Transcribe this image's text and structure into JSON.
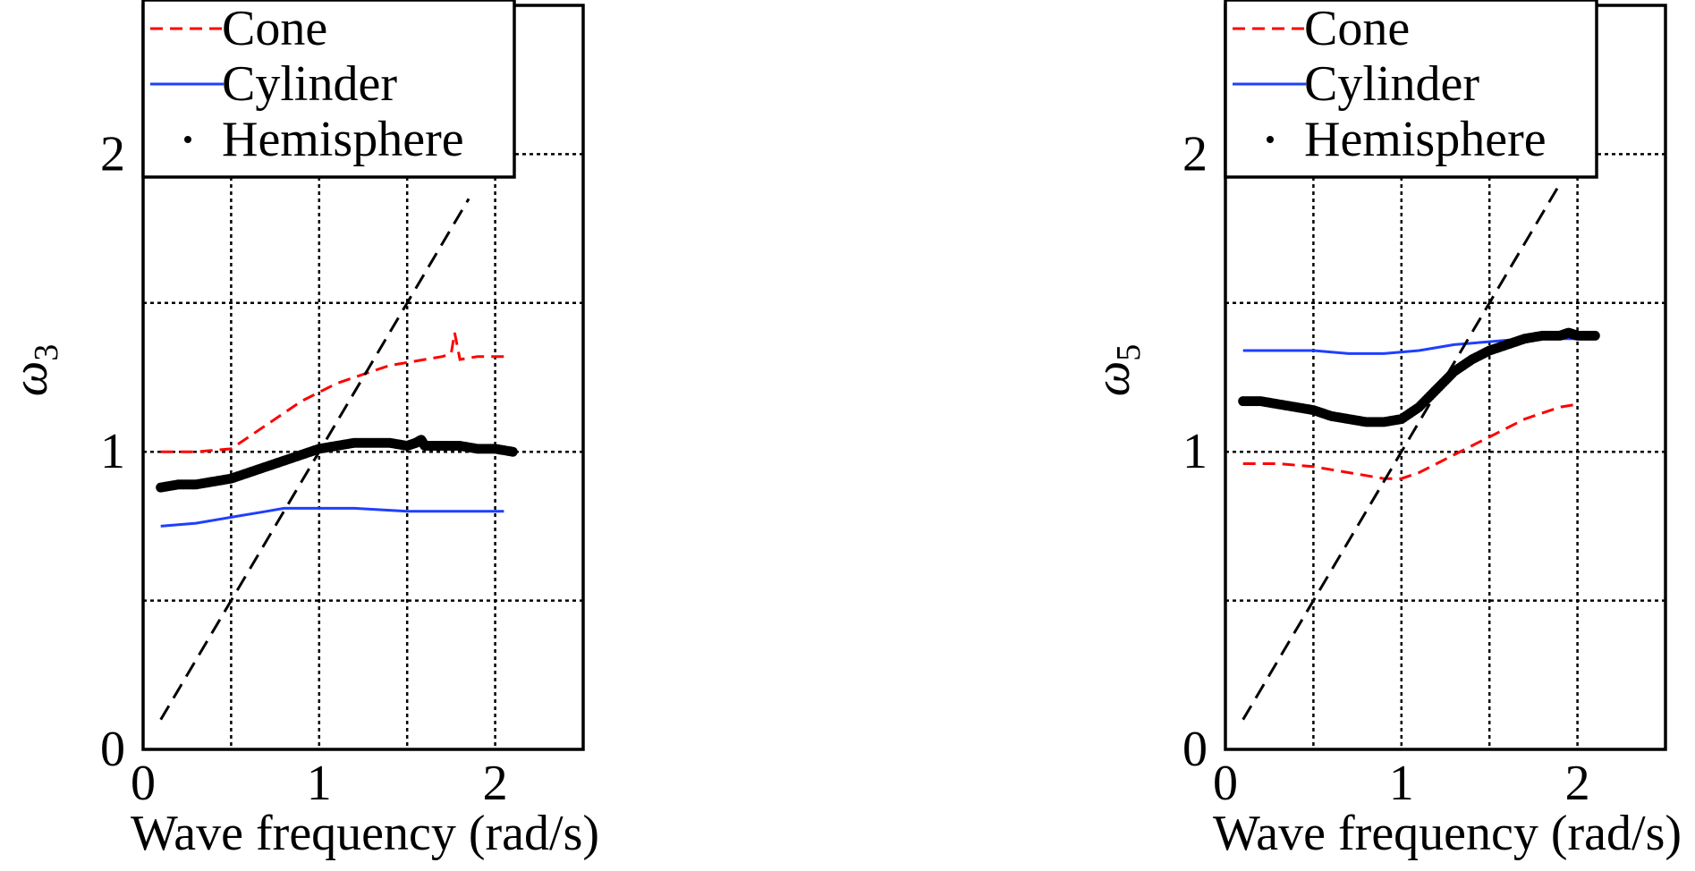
{
  "chart_data": [
    {
      "type": "line",
      "xlabel": "Wave frequency (rad/s)",
      "ylabel_symbol": "ω",
      "ylabel_sub": "3",
      "xlim": [
        0,
        2.5
      ],
      "ylim": [
        0,
        2.5
      ],
      "xticks": [
        "0",
        "1",
        "2"
      ],
      "yticks": [
        "0",
        "1",
        "2"
      ],
      "grid": true,
      "legend": {
        "position": "top-left",
        "entries": [
          {
            "label": "Cone",
            "color": "#ff0000",
            "style": "dashed"
          },
          {
            "label": "Cylinder",
            "color": "#1f3fff",
            "style": "solid"
          },
          {
            "label": "Hemisphere",
            "color": "#000000",
            "style": "dots"
          }
        ]
      },
      "series": [
        {
          "name": "Cone",
          "color": "#ff0000",
          "style": "dashed",
          "x": [
            0.1,
            0.3,
            0.5,
            0.6,
            0.7,
            0.8,
            0.9,
            1.0,
            1.1,
            1.2,
            1.3,
            1.4,
            1.5,
            1.6,
            1.7,
            1.75,
            1.77,
            1.8,
            1.9,
            2.05
          ],
          "y": [
            1.0,
            1.0,
            1.01,
            1.05,
            1.09,
            1.13,
            1.17,
            1.2,
            1.23,
            1.25,
            1.27,
            1.29,
            1.3,
            1.31,
            1.32,
            1.33,
            1.4,
            1.31,
            1.32,
            1.32
          ]
        },
        {
          "name": "Cylinder",
          "color": "#1f3fff",
          "style": "solid",
          "x": [
            0.1,
            0.3,
            0.5,
            0.7,
            0.8,
            0.9,
            1.0,
            1.2,
            1.5,
            1.8,
            2.05
          ],
          "y": [
            0.75,
            0.76,
            0.78,
            0.8,
            0.81,
            0.81,
            0.81,
            0.81,
            0.8,
            0.8,
            0.8
          ]
        },
        {
          "name": "Hemisphere",
          "color": "#000000",
          "style": "dots",
          "x": [
            0.1,
            0.2,
            0.3,
            0.4,
            0.5,
            0.6,
            0.7,
            0.8,
            0.9,
            1.0,
            1.1,
            1.2,
            1.3,
            1.4,
            1.5,
            1.55,
            1.58,
            1.6,
            1.7,
            1.8,
            1.9,
            2.0,
            2.1
          ],
          "y": [
            0.88,
            0.89,
            0.89,
            0.9,
            0.91,
            0.93,
            0.95,
            0.97,
            0.99,
            1.01,
            1.02,
            1.03,
            1.03,
            1.03,
            1.02,
            1.03,
            1.04,
            1.02,
            1.02,
            1.02,
            1.01,
            1.01,
            1.0
          ]
        },
        {
          "name": "",
          "color": "#000000",
          "style": "longdash",
          "x": [
            0.1,
            1.85
          ],
          "y": [
            0.1,
            1.85
          ]
        }
      ]
    },
    {
      "type": "line",
      "xlabel": "Wave frequency (rad/s)",
      "ylabel_symbol": "ω",
      "ylabel_sub": "5",
      "xlim": [
        0,
        2.5
      ],
      "ylim": [
        0,
        2.5
      ],
      "xticks": [
        "0",
        "1",
        "2"
      ],
      "yticks": [
        "0",
        "1",
        "2"
      ],
      "grid": true,
      "legend": {
        "position": "top-left",
        "entries": [
          {
            "label": "Cone",
            "color": "#ff0000",
            "style": "dashed"
          },
          {
            "label": "Cylinder",
            "color": "#1f3fff",
            "style": "solid"
          },
          {
            "label": "Hemisphere",
            "color": "#000000",
            "style": "dots"
          }
        ]
      },
      "series": [
        {
          "name": "Cone",
          "color": "#ff0000",
          "style": "dashed",
          "x": [
            0.1,
            0.3,
            0.5,
            0.7,
            0.8,
            0.9,
            1.0,
            1.1,
            1.2,
            1.3,
            1.4,
            1.5,
            1.6,
            1.7,
            1.8,
            1.9,
            2.0
          ],
          "y": [
            0.96,
            0.96,
            0.95,
            0.93,
            0.92,
            0.91,
            0.91,
            0.93,
            0.96,
            0.99,
            1.02,
            1.05,
            1.08,
            1.11,
            1.13,
            1.15,
            1.16
          ]
        },
        {
          "name": "Cylinder",
          "color": "#1f3fff",
          "style": "solid",
          "x": [
            0.1,
            0.3,
            0.5,
            0.7,
            0.9,
            1.1,
            1.3,
            1.5,
            1.7,
            1.9,
            2.05
          ],
          "y": [
            1.34,
            1.34,
            1.34,
            1.33,
            1.33,
            1.34,
            1.36,
            1.37,
            1.38,
            1.38,
            1.38
          ]
        },
        {
          "name": "Hemisphere",
          "color": "#000000",
          "style": "dots",
          "x": [
            0.1,
            0.2,
            0.3,
            0.4,
            0.5,
            0.6,
            0.7,
            0.8,
            0.9,
            1.0,
            1.1,
            1.2,
            1.3,
            1.4,
            1.5,
            1.6,
            1.7,
            1.8,
            1.9,
            1.95,
            2.0,
            2.1
          ],
          "y": [
            1.17,
            1.17,
            1.16,
            1.15,
            1.14,
            1.12,
            1.11,
            1.1,
            1.1,
            1.11,
            1.15,
            1.21,
            1.27,
            1.31,
            1.34,
            1.36,
            1.38,
            1.39,
            1.39,
            1.4,
            1.39,
            1.39
          ]
        },
        {
          "name": "",
          "color": "#000000",
          "style": "longdash",
          "x": [
            0.1,
            1.9
          ],
          "y": [
            0.1,
            1.9
          ]
        }
      ]
    }
  ]
}
